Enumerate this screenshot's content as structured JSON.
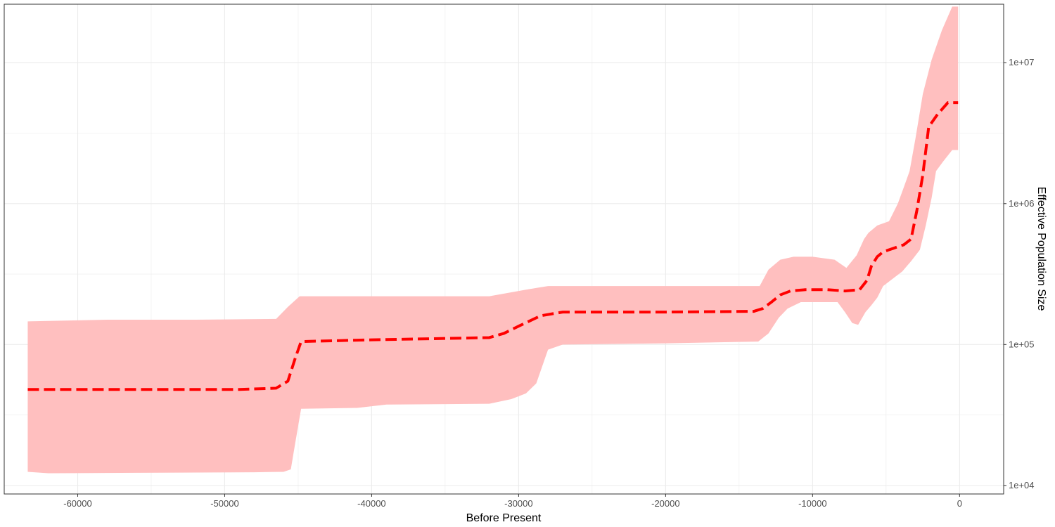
{
  "chart_data": {
    "type": "area",
    "xlabel": "Before Present",
    "ylabel": "Effective Population Size",
    "xlim": [
      -65000,
      3000
    ],
    "ylim": [
      8700,
      26000000
    ],
    "yscale": "log",
    "y_axis_position": "right",
    "grid": true,
    "x_ticks": [
      -60000,
      -50000,
      -40000,
      -30000,
      -20000,
      -10000,
      0
    ],
    "x_tick_labels": [
      "-60000",
      "-50000",
      "-40000",
      "-30000",
      "-20000",
      "-10000",
      "0"
    ],
    "y_ticks": [
      10000,
      100000,
      1000000,
      10000000
    ],
    "y_tick_labels": [
      "1e+04",
      "1e+05",
      "1e+06",
      "1e+07"
    ],
    "colors": {
      "band": "#ffbfbf",
      "median": "#ff0000",
      "grid": "#ebebeb",
      "border": "#333333"
    },
    "series": [
      {
        "role": "upper",
        "x": [
          -63400,
          -58000,
          -52000,
          -46500,
          -45700,
          -44900,
          -40000,
          -32000,
          -29500,
          -28000,
          -20000,
          -13600,
          -13000,
          -12200,
          -11300,
          -10000,
          -8500,
          -7700,
          -7000,
          -6500,
          -6200,
          -5600,
          -4800,
          -4200,
          -3800,
          -3400,
          -3000,
          -2500,
          -1900,
          -1200,
          -500,
          -100
        ],
        "y": [
          146000,
          150000,
          150000,
          152000,
          185000,
          220000,
          220000,
          220000,
          245000,
          260000,
          260000,
          260000,
          340000,
          400000,
          420000,
          420000,
          400000,
          350000,
          430000,
          560000,
          620000,
          700000,
          750000,
          1000000,
          1300000,
          1700000,
          2900000,
          6000000,
          10500000,
          17000000,
          25000000,
          25000000
        ]
      },
      {
        "role": "median",
        "x": [
          -63400,
          -49000,
          -46500,
          -45700,
          -45200,
          -44800,
          -40000,
          -32000,
          -31000,
          -30000,
          -28500,
          -27000,
          -20000,
          -14000,
          -13400,
          -12800,
          -12200,
          -11500,
          -10500,
          -9000,
          -7800,
          -6800,
          -6300,
          -6000,
          -5600,
          -5200,
          -4800,
          -4300,
          -3800,
          -3300,
          -2900,
          -2500,
          -2100,
          -1500,
          -800,
          -100
        ],
        "y": [
          48000,
          48000,
          49000,
          55000,
          80000,
          105000,
          108000,
          112000,
          120000,
          135000,
          160000,
          170000,
          170000,
          172000,
          180000,
          200000,
          225000,
          240000,
          245000,
          245000,
          240000,
          245000,
          285000,
          360000,
          420000,
          455000,
          470000,
          490000,
          510000,
          560000,
          900000,
          1600000,
          3500000,
          4300000,
          5200000,
          5200000
        ]
      },
      {
        "role": "lower",
        "x": [
          -63400,
          -62000,
          -56000,
          -48000,
          -46000,
          -45500,
          -45200,
          -44800,
          -41000,
          -39000,
          -32000,
          -30500,
          -29500,
          -28800,
          -28000,
          -27000,
          -20000,
          -13700,
          -13000,
          -12300,
          -11700,
          -10800,
          -9000,
          -8300,
          -7800,
          -7300,
          -6900,
          -6400,
          -6000,
          -5600,
          -5200,
          -4700,
          -3900,
          -3300,
          -2700,
          -2300,
          -1900,
          -1600,
          -1100,
          -500,
          -100
        ],
        "y": [
          12500,
          12200,
          12300,
          12400,
          12500,
          13000,
          20000,
          35000,
          35500,
          37500,
          38000,
          41000,
          45000,
          53000,
          92000,
          100000,
          102000,
          105000,
          120000,
          155000,
          180000,
          200000,
          200000,
          200000,
          170000,
          142000,
          138000,
          170000,
          190000,
          215000,
          260000,
          285000,
          330000,
          390000,
          470000,
          700000,
          1100000,
          1700000,
          2000000,
          2400000,
          2400000
        ]
      }
    ]
  }
}
